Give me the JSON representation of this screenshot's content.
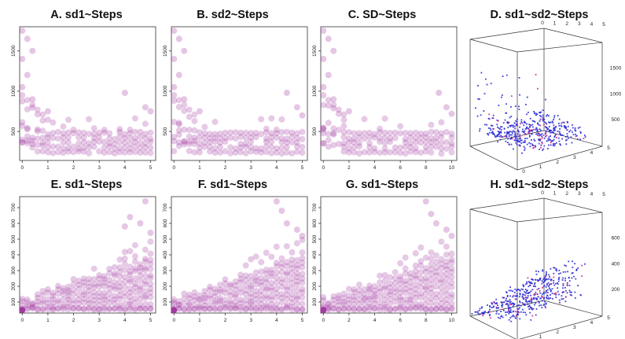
{
  "chart_data": [
    {
      "id": "A",
      "type": "scatter",
      "title": "A. sd1~Steps",
      "xlabel": "",
      "ylabel": "",
      "xlim": [
        -0.1,
        5.2
      ],
      "ylim": [
        140,
        1800
      ],
      "xticks": [
        "0",
        "1",
        "2",
        "3",
        "4",
        "5"
      ],
      "yticks": [
        "500",
        "1000",
        "1500"
      ],
      "color": "#a0349e",
      "pattern": "decay",
      "x_values": [
        0,
        0.2,
        0.4,
        0.6,
        0.8,
        1.0,
        1.2,
        1.4,
        1.6,
        1.8,
        2.0,
        2.2,
        2.4,
        2.6,
        2.8,
        3.0,
        3.2,
        3.4,
        3.6,
        3.8,
        4.0,
        4.2,
        4.4,
        4.6,
        4.8,
        5.0
      ],
      "levels": [
        240,
        300,
        360,
        420,
        480
      ],
      "outliers": [
        [
          0,
          1750
        ],
        [
          0.2,
          1650
        ],
        [
          0.4,
          1500
        ],
        [
          0,
          1400
        ],
        [
          0.2,
          1200
        ],
        [
          0,
          1050
        ],
        [
          0.4,
          900
        ],
        [
          1.0,
          750
        ],
        [
          4.0,
          980
        ],
        [
          4.8,
          800
        ],
        [
          5.0,
          750
        ]
      ]
    },
    {
      "id": "B",
      "type": "scatter",
      "title": "B. sd2~Steps",
      "xlabel": "",
      "ylabel": "",
      "xlim": [
        -0.1,
        5.2
      ],
      "ylim": [
        140,
        1800
      ],
      "xticks": [
        "0",
        "1",
        "2",
        "3",
        "4",
        "5"
      ],
      "yticks": [
        "500",
        "1000",
        "1500"
      ],
      "color": "#a0349e",
      "pattern": "decay",
      "x_values": [
        0,
        0.2,
        0.4,
        0.6,
        0.8,
        1.0,
        1.2,
        1.4,
        1.6,
        1.8,
        2.0,
        2.2,
        2.4,
        2.6,
        2.8,
        3.0,
        3.2,
        3.4,
        3.6,
        3.8,
        4.0,
        4.2,
        4.4,
        4.6,
        4.8,
        5.0
      ],
      "levels": [
        240,
        300,
        360,
        420,
        480
      ],
      "outliers": [
        [
          0,
          1750
        ],
        [
          0.2,
          1650
        ],
        [
          0.4,
          1500
        ],
        [
          0,
          1400
        ],
        [
          0.2,
          1200
        ],
        [
          0,
          1050
        ],
        [
          0.4,
          900
        ],
        [
          1.0,
          750
        ],
        [
          4.4,
          980
        ],
        [
          4.8,
          800
        ],
        [
          5.0,
          700
        ]
      ]
    },
    {
      "id": "C",
      "type": "scatter",
      "title": "C. SD~Steps",
      "xlabel": "",
      "ylabel": "",
      "xlim": [
        -0.2,
        10.4
      ],
      "ylim": [
        140,
        1800
      ],
      "xticks": [
        "0",
        "2",
        "4",
        "6",
        "8",
        "10"
      ],
      "yticks": [
        "500",
        "1000",
        "1500"
      ],
      "color": "#a0349e",
      "pattern": "decay",
      "x_values": [
        0,
        0.4,
        0.8,
        1.2,
        1.6,
        2.0,
        2.4,
        2.8,
        3.2,
        3.6,
        4.0,
        4.4,
        4.8,
        5.2,
        5.6,
        6.0,
        6.4,
        6.8,
        7.2,
        7.6,
        8.0,
        8.4,
        8.8,
        9.2,
        9.6,
        10.0
      ],
      "levels": [
        240,
        300,
        360,
        420,
        480
      ],
      "outliers": [
        [
          0,
          1750
        ],
        [
          0.4,
          1650
        ],
        [
          0.8,
          1500
        ],
        [
          0,
          1400
        ],
        [
          0.4,
          1200
        ],
        [
          0,
          1050
        ],
        [
          0.8,
          900
        ],
        [
          2.0,
          750
        ],
        [
          9.0,
          980
        ],
        [
          9.6,
          800
        ],
        [
          10.0,
          720
        ]
      ]
    },
    {
      "id": "D",
      "type": "scatter3d",
      "title": "D. sd1~sd2~Steps",
      "axis_top_ticks": [
        "0",
        "1",
        "2",
        "3",
        "4",
        "5"
      ],
      "axis_right_ticks": [
        "500",
        "1000",
        "1500"
      ],
      "axis_front_ticks": [
        "0",
        "1",
        "2",
        "3",
        "4",
        "5"
      ],
      "color": "#2b2bd6",
      "accent_color": "#d6247a",
      "pattern": "decay3d"
    },
    {
      "id": "E",
      "type": "scatter",
      "title": "E. sd1~Steps",
      "xlabel": "",
      "ylabel": "",
      "xlim": [
        -0.1,
        5.2
      ],
      "ylim": [
        30,
        770
      ],
      "xticks": [
        "0",
        "1",
        "2",
        "3",
        "4",
        "5"
      ],
      "yticks": [
        "100",
        "200",
        "300",
        "400",
        "500",
        "600",
        "700"
      ],
      "color": "#a0349e",
      "pattern": "growth",
      "x_values": [
        0,
        0.2,
        0.4,
        0.6,
        0.8,
        1.0,
        1.2,
        1.4,
        1.6,
        1.8,
        2.0,
        2.2,
        2.4,
        2.6,
        2.8,
        3.0,
        3.2,
        3.4,
        3.6,
        3.8,
        4.0,
        4.2,
        4.4,
        4.6,
        4.8,
        5.0
      ],
      "outliers": [
        [
          4.0,
          580
        ],
        [
          4.2,
          640
        ],
        [
          4.6,
          600
        ],
        [
          4.8,
          740
        ],
        [
          5.0,
          540
        ]
      ]
    },
    {
      "id": "F",
      "type": "scatter",
      "title": "F. sd1~Steps",
      "xlabel": "",
      "ylabel": "",
      "xlim": [
        -0.1,
        5.2
      ],
      "ylim": [
        30,
        770
      ],
      "xticks": [
        "0",
        "1",
        "2",
        "3",
        "4",
        "5"
      ],
      "yticks": [
        "100",
        "200",
        "300",
        "400",
        "500",
        "600",
        "700"
      ],
      "color": "#a0349e",
      "pattern": "growth",
      "x_values": [
        0,
        0.2,
        0.4,
        0.6,
        0.8,
        1.0,
        1.2,
        1.4,
        1.6,
        1.8,
        2.0,
        2.2,
        2.4,
        2.6,
        2.8,
        3.0,
        3.2,
        3.4,
        3.6,
        3.8,
        4.0,
        4.2,
        4.4,
        4.6,
        4.8,
        5.0
      ],
      "outliers": [
        [
          4.0,
          740
        ],
        [
          4.2,
          680
        ],
        [
          4.4,
          600
        ],
        [
          4.8,
          560
        ],
        [
          5.0,
          520
        ]
      ]
    },
    {
      "id": "G",
      "type": "scatter",
      "title": "G. sd1~Steps",
      "xlabel": "",
      "ylabel": "",
      "xlim": [
        -0.2,
        10.4
      ],
      "ylim": [
        30,
        770
      ],
      "xticks": [
        "0",
        "2",
        "4",
        "6",
        "8",
        "10"
      ],
      "yticks": [
        "100",
        "200",
        "300",
        "400",
        "500",
        "600",
        "700"
      ],
      "color": "#a0349e",
      "pattern": "growth",
      "x_values": [
        0,
        0.4,
        0.8,
        1.2,
        1.6,
        2.0,
        2.4,
        2.8,
        3.2,
        3.6,
        4.0,
        4.4,
        4.8,
        5.2,
        5.6,
        6.0,
        6.4,
        6.8,
        7.2,
        7.6,
        8.0,
        8.4,
        8.8,
        9.2,
        9.6,
        10.0
      ],
      "outliers": [
        [
          8.0,
          740
        ],
        [
          8.4,
          660
        ],
        [
          8.8,
          600
        ],
        [
          9.6,
          560
        ],
        [
          10.0,
          520
        ]
      ]
    },
    {
      "id": "H",
      "type": "scatter3d",
      "title": "H. sd1~sd2~Steps",
      "axis_top_ticks": [
        "0",
        "1",
        "2",
        "3",
        "4",
        "5"
      ],
      "axis_right_ticks": [
        "200",
        "400",
        "600"
      ],
      "axis_front_ticks": [
        "0",
        "1",
        "2",
        "3",
        "4",
        "5"
      ],
      "color": "#2b2bd6",
      "accent_color": "#d6247a",
      "pattern": "growth3d"
    }
  ]
}
